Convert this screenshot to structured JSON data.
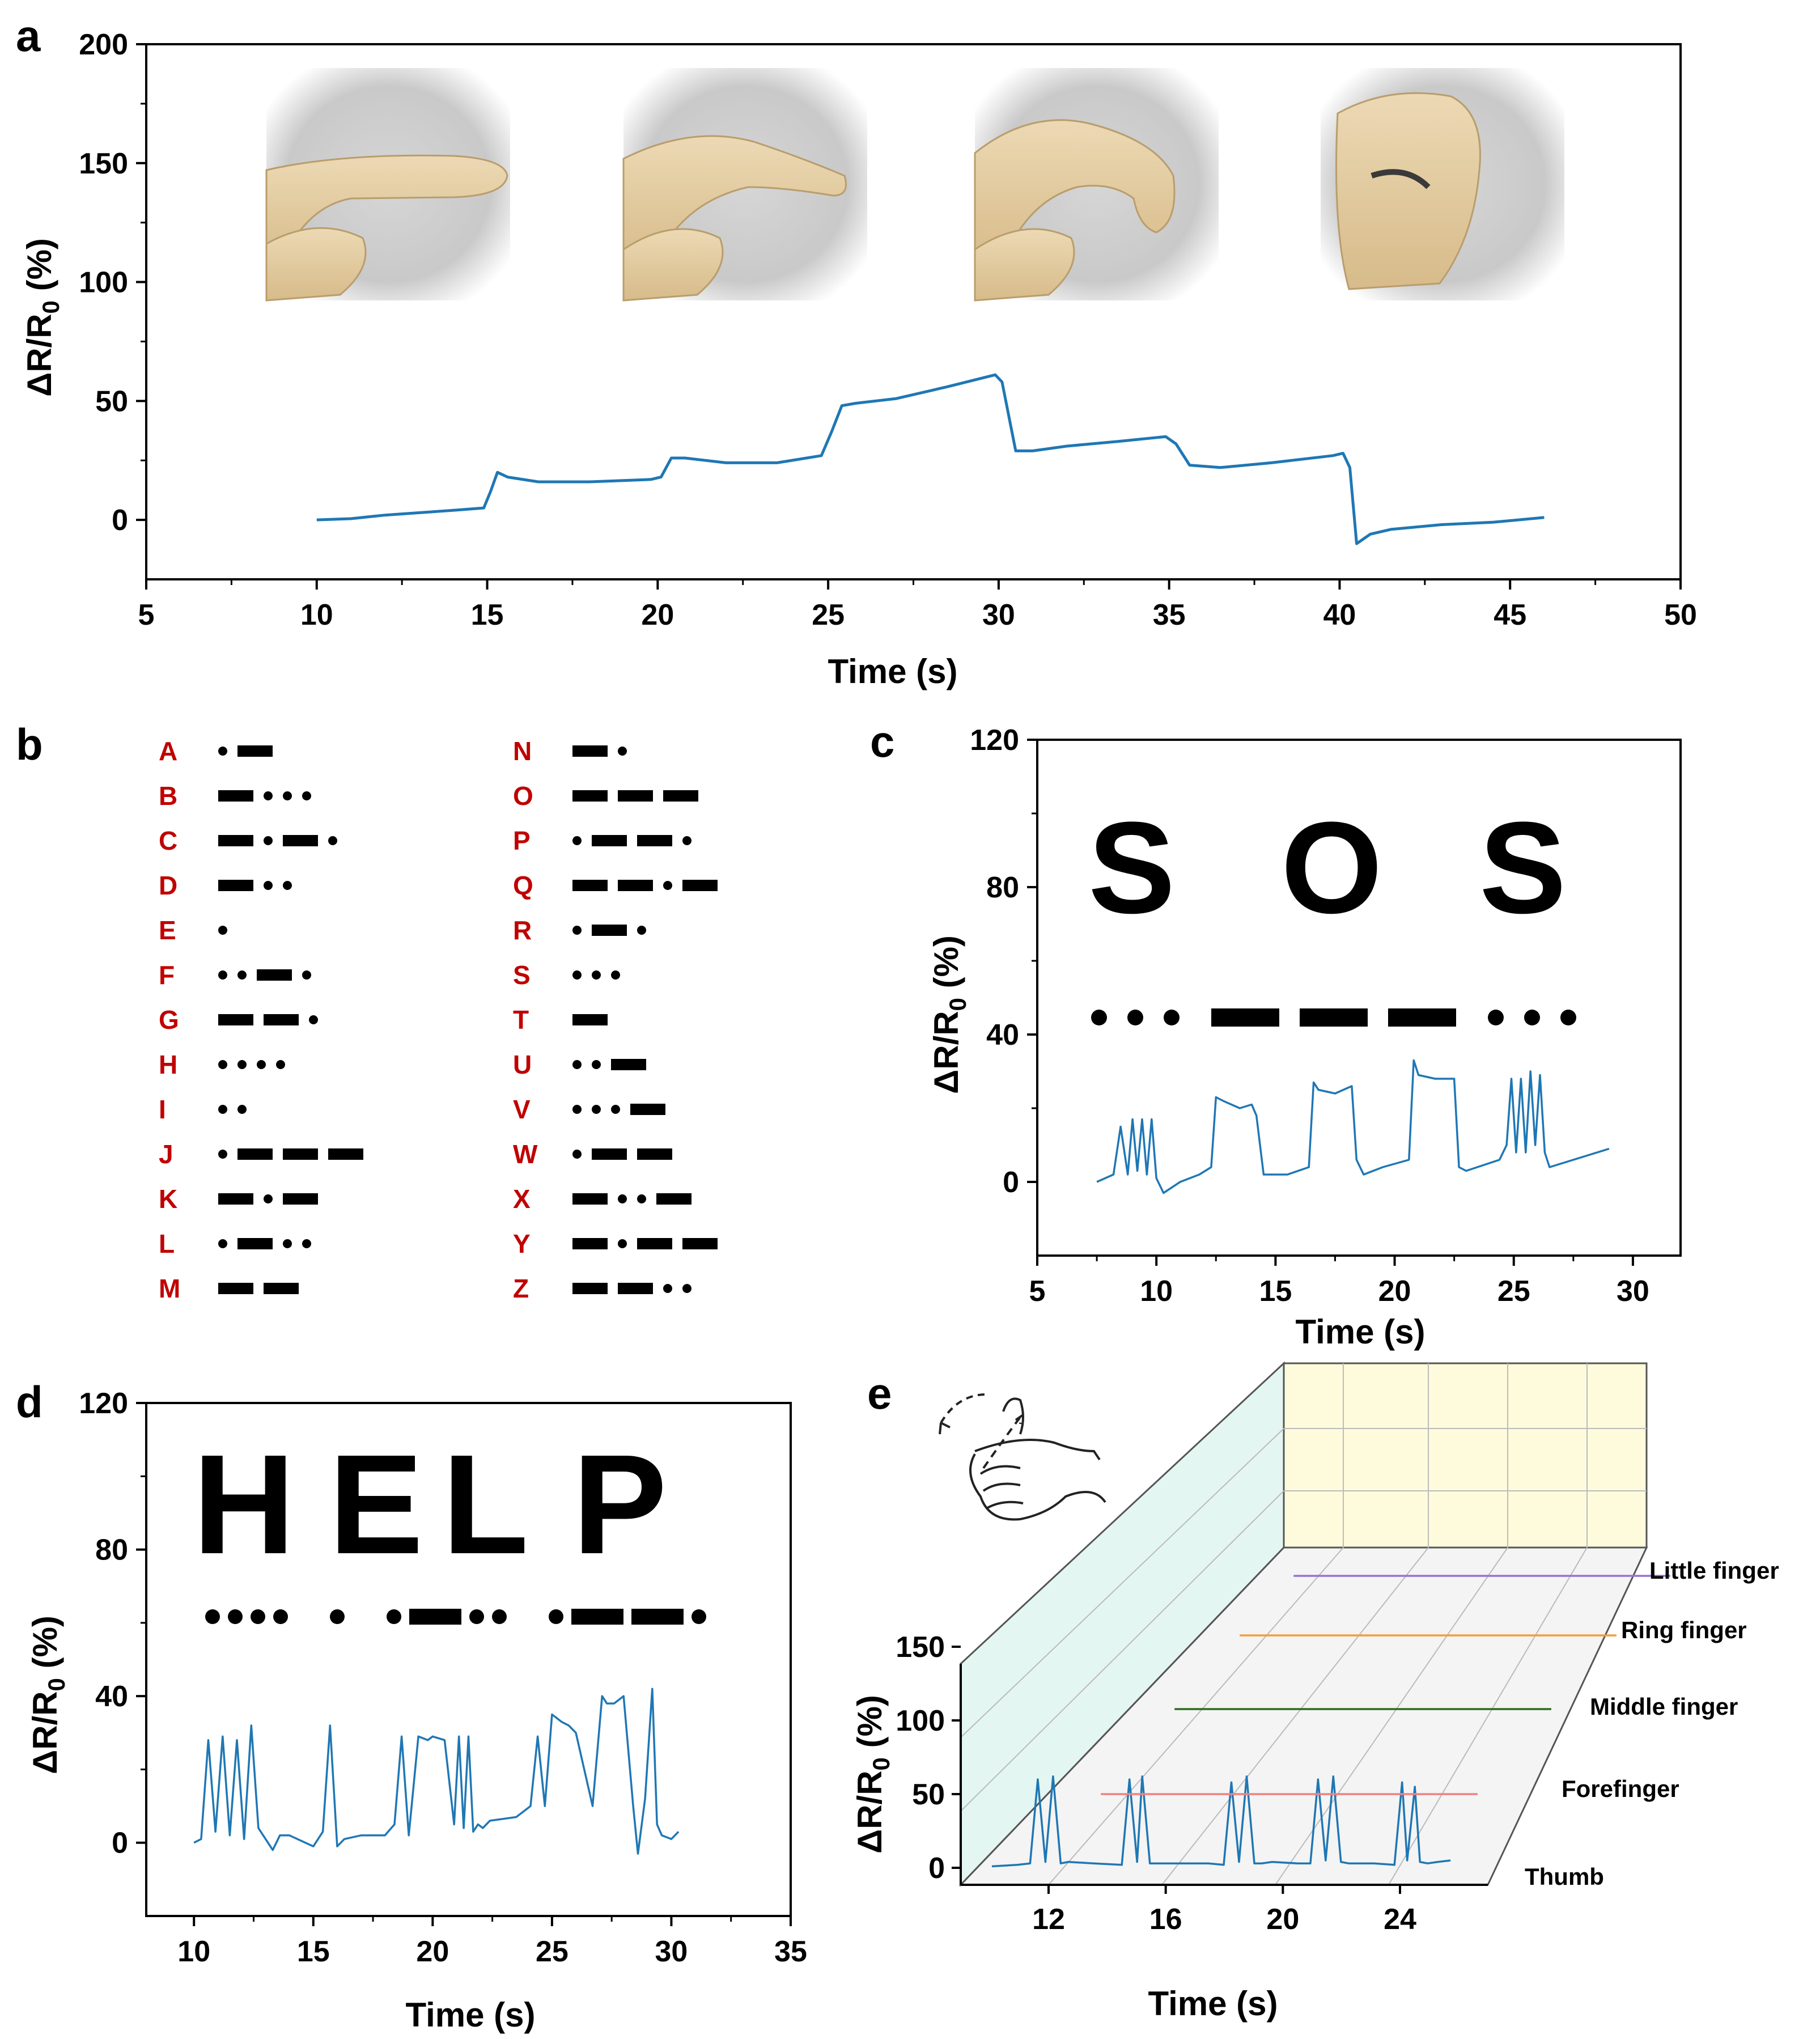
{
  "colors": {
    "trace": "#1f77b4",
    "axis": "#000000",
    "morse_letter": "#c00000",
    "thumb": "#1f77b4",
    "forefinger": "#f08080",
    "middle": "#2e6b1f",
    "ring": "#f39c3b",
    "little": "#9b6fd6",
    "wall": "#e8f7f2",
    "backwall": "#fdfce0"
  },
  "panel_a": {
    "letter": "a",
    "xlabel": "Time (s)",
    "ylabel": "ΔR/R",
    "ylabel_sub": "0",
    "ylabel_unit": " (%)",
    "photos": [
      "finger-straight",
      "finger-slight-bend",
      "finger-medium-bend",
      "finger-full-bend"
    ]
  },
  "panel_b": {
    "letter": "b",
    "morse": [
      {
        "letter": "A",
        "code": ".-"
      },
      {
        "letter": "B",
        "code": "-..."
      },
      {
        "letter": "C",
        "code": "-.-."
      },
      {
        "letter": "D",
        "code": "-.."
      },
      {
        "letter": "E",
        "code": "."
      },
      {
        "letter": "F",
        "code": "..-."
      },
      {
        "letter": "G",
        "code": "--."
      },
      {
        "letter": "H",
        "code": "...."
      },
      {
        "letter": "I",
        "code": ".."
      },
      {
        "letter": "J",
        "code": ".---"
      },
      {
        "letter": "K",
        "code": "-.-"
      },
      {
        "letter": "L",
        "code": ".-.."
      },
      {
        "letter": "M",
        "code": "--"
      },
      {
        "letter": "N",
        "code": "-."
      },
      {
        "letter": "O",
        "code": "---"
      },
      {
        "letter": "P",
        "code": ".--."
      },
      {
        "letter": "Q",
        "code": "--.-"
      },
      {
        "letter": "R",
        "code": ".-."
      },
      {
        "letter": "S",
        "code": "..."
      },
      {
        "letter": "T",
        "code": "-"
      },
      {
        "letter": "U",
        "code": "..-"
      },
      {
        "letter": "V",
        "code": "...-"
      },
      {
        "letter": "W",
        "code": ".--"
      },
      {
        "letter": "X",
        "code": "-..-"
      },
      {
        "letter": "Y",
        "code": "-.--"
      },
      {
        "letter": "Z",
        "code": "--.."
      }
    ]
  },
  "panel_c": {
    "letter": "c",
    "word_letters": [
      "S",
      "O",
      "S"
    ],
    "morse_groups": [
      "...",
      "---",
      "..."
    ],
    "xlabel": "Time (s)",
    "ylabel": "ΔR/R",
    "ylabel_sub": "0",
    "ylabel_unit": " (%)"
  },
  "panel_d": {
    "letter": "d",
    "word_letters": [
      "H",
      "E",
      "L",
      "P"
    ],
    "morse_groups": [
      "....",
      ".",
      ".-..",
      ".--."
    ],
    "xlabel": "Time (s)",
    "ylabel": "ΔR/R",
    "ylabel_sub": "0",
    "ylabel_unit": " (%)"
  },
  "panel_e": {
    "letter": "e",
    "xlabel": "Time (s)",
    "ylabel": "ΔR/R",
    "ylabel_sub": "0",
    "ylabel_unit": " (%)",
    "finger_labels": [
      "Thumb",
      "Forefinger",
      "Middle finger",
      "Ring finger",
      "Little finger"
    ],
    "icon": "hand-gesture-icon"
  },
  "chart_data": [
    {
      "id": "a",
      "type": "line",
      "xlabel": "Time (s)",
      "ylabel": "ΔR/R0 (%)",
      "xlim": [
        5,
        50
      ],
      "ylim": [
        -25,
        200
      ],
      "xticks": [
        5,
        10,
        15,
        20,
        25,
        30,
        35,
        40,
        45,
        50
      ],
      "yticks": [
        0,
        50,
        100,
        150,
        200
      ],
      "series": [
        {
          "name": "finger bending",
          "x": [
            10,
            11,
            12,
            13,
            14,
            14.9,
            15.1,
            15.3,
            15.6,
            16.5,
            18,
            19.8,
            20.1,
            20.4,
            20.8,
            22,
            23.5,
            24.8,
            25.1,
            25.4,
            25.8,
            27,
            28.5,
            29.9,
            30.1,
            30.5,
            31,
            32,
            33.5,
            34.9,
            35.2,
            35.6,
            36.5,
            38,
            39.8,
            40.1,
            40.3,
            40.5,
            40.9,
            41.5,
            43,
            44.5,
            46
          ],
          "y": [
            0,
            0.5,
            2,
            3,
            4,
            5,
            12,
            20,
            18,
            16,
            16,
            17,
            18,
            26,
            26,
            24,
            24,
            27,
            37,
            48,
            49,
            51,
            56,
            61,
            58,
            29,
            29,
            31,
            33,
            35,
            32,
            23,
            22,
            24,
            27,
            28,
            22,
            -10,
            -6,
            -4,
            -2,
            -1,
            1
          ]
        }
      ]
    },
    {
      "id": "c",
      "type": "line",
      "xlabel": "Time (s)",
      "ylabel": "ΔR/R0 (%)",
      "xlim": [
        5,
        32
      ],
      "ylim": [
        -20,
        120
      ],
      "xticks": [
        5,
        10,
        15,
        20,
        25,
        30
      ],
      "yticks": [
        0,
        40,
        80,
        120
      ],
      "series": [
        {
          "name": "SOS",
          "x": [
            7.5,
            8.2,
            8.5,
            8.8,
            9.0,
            9.2,
            9.4,
            9.6,
            9.8,
            10.0,
            10.3,
            11.0,
            11.8,
            12.3,
            12.5,
            12.8,
            13.5,
            14.0,
            14.2,
            14.5,
            15.5,
            16.4,
            16.6,
            16.8,
            17.5,
            18.2,
            18.4,
            18.7,
            19.5,
            20.6,
            20.8,
            21.0,
            21.7,
            22.5,
            22.7,
            23.0,
            24.4,
            24.7,
            24.9,
            25.1,
            25.3,
            25.5,
            25.7,
            25.9,
            26.1,
            26.3,
            26.5,
            27.0,
            28.0,
            29.0
          ],
          "y": [
            0,
            2,
            15,
            2,
            17,
            3,
            17,
            2,
            17,
            1,
            -3,
            0,
            2,
            4,
            23,
            22,
            20,
            21,
            18,
            2,
            2,
            4,
            27,
            25,
            24,
            26,
            6,
            2,
            4,
            6,
            33,
            29,
            28,
            28,
            4,
            3,
            6,
            10,
            28,
            8,
            28,
            8,
            30,
            10,
            29,
            8,
            4,
            5,
            7,
            9
          ]
        }
      ]
    },
    {
      "id": "d",
      "type": "line",
      "xlabel": "Time (s)",
      "ylabel": "ΔR/R0 (%)",
      "xlim": [
        8,
        35
      ],
      "ylim": [
        -20,
        120
      ],
      "xticks": [
        10,
        15,
        20,
        25,
        30,
        35
      ],
      "yticks": [
        0,
        40,
        80,
        120
      ],
      "series": [
        {
          "name": "HELP",
          "x": [
            10,
            10.3,
            10.6,
            10.9,
            11.2,
            11.5,
            11.8,
            12.1,
            12.4,
            12.7,
            13.0,
            13.3,
            13.6,
            14.0,
            15.0,
            15.4,
            15.7,
            16.0,
            16.3,
            17.0,
            18.0,
            18.4,
            18.7,
            19.0,
            19.4,
            19.8,
            20.0,
            20.5,
            20.9,
            21.1,
            21.3,
            21.5,
            21.7,
            21.9,
            22.1,
            22.4,
            23.5,
            24.1,
            24.4,
            24.7,
            25.0,
            25.4,
            25.7,
            26.0,
            26.7,
            27.1,
            27.3,
            27.6,
            28.0,
            28.4,
            28.6,
            28.9,
            29.2,
            29.4,
            29.6,
            30.0,
            30.3
          ],
          "y": [
            0,
            1,
            28,
            3,
            29,
            2,
            28,
            1,
            32,
            4,
            1,
            -2,
            2,
            2,
            -1,
            3,
            32,
            -1,
            1,
            2,
            2,
            5,
            29,
            2,
            29,
            28,
            29,
            28,
            5,
            29,
            4,
            29,
            3,
            5,
            4,
            6,
            7,
            10,
            29,
            10,
            35,
            33,
            32,
            30,
            10,
            40,
            38,
            38,
            40,
            10,
            -3,
            12,
            42,
            5,
            2,
            1,
            3
          ]
        }
      ]
    },
    {
      "id": "e",
      "type": "line",
      "xlabel": "Time (s)",
      "ylabel": "ΔR/R0 (%)",
      "xlim": [
        9,
        27
      ],
      "ylim": [
        0,
        150
      ],
      "xticks": [
        12,
        16,
        20,
        24
      ],
      "yticks": [
        0,
        50,
        100,
        150
      ],
      "series": [
        {
          "name": "Thumb",
          "x": [
            9,
            10,
            10.5,
            10.8,
            11.1,
            11.4,
            11.7,
            12.0,
            13.0,
            14.1,
            14.4,
            14.7,
            14.9,
            15.2,
            15.5,
            16.0,
            17.5,
            18.1,
            18.4,
            18.7,
            19.0,
            19.3,
            19.6,
            20.0,
            21.0,
            21.5,
            21.8,
            22.1,
            22.4,
            22.7,
            23.0,
            24.0,
            24.8,
            25.1,
            25.3,
            25.6,
            25.8,
            26.1,
            26.5,
            27
          ],
          "y": [
            1,
            2,
            3,
            60,
            4,
            62,
            3,
            4,
            3,
            2,
            60,
            4,
            62,
            3,
            3,
            3,
            3,
            2,
            58,
            4,
            62,
            3,
            3,
            4,
            3,
            3,
            60,
            5,
            62,
            4,
            3,
            3,
            2,
            58,
            5,
            55,
            4,
            3,
            4,
            5
          ]
        },
        {
          "name": "Forefinger",
          "x": [
            9,
            27
          ],
          "y": [
            0,
            0
          ]
        },
        {
          "name": "Middle finger",
          "x": [
            9,
            27
          ],
          "y": [
            0,
            0
          ]
        },
        {
          "name": "Ring finger",
          "x": [
            9,
            27
          ],
          "y": [
            0,
            0
          ]
        },
        {
          "name": "Little finger",
          "x": [
            9,
            27
          ],
          "y": [
            0,
            0
          ]
        }
      ]
    }
  ]
}
